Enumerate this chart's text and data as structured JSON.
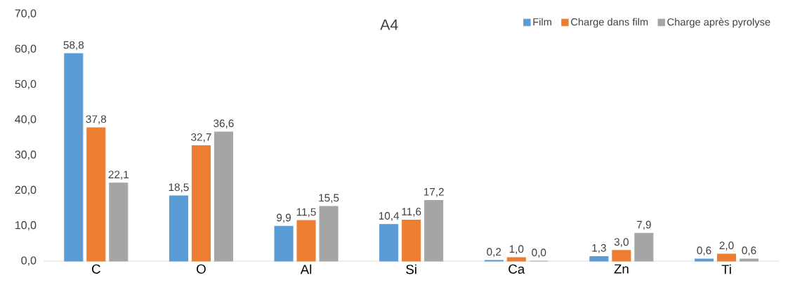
{
  "chart_data": {
    "type": "bar",
    "title": "A4",
    "categories": [
      "C",
      "O",
      "Al",
      "Si",
      "Ca",
      "Zn",
      "Ti"
    ],
    "series": [
      {
        "name": "Film",
        "color": "#5b9bd5",
        "values": [
          58.8,
          18.5,
          9.9,
          10.4,
          0.2,
          1.3,
          0.6
        ],
        "value_labels": [
          "58,8",
          "18,5",
          "9,9",
          "10,4",
          "0,2",
          "1,3",
          "0,6"
        ]
      },
      {
        "name": "Charge dans film",
        "color": "#ed7d31",
        "values": [
          37.8,
          32.7,
          11.5,
          11.6,
          1.0,
          3.0,
          2.0
        ],
        "value_labels": [
          "37,8",
          "32,7",
          "11,5",
          "11,6",
          "1,0",
          "3,0",
          "2,0"
        ]
      },
      {
        "name": "Charge après pyrolyse",
        "color": "#a5a5a5",
        "values": [
          22.1,
          36.6,
          15.5,
          17.2,
          0.0,
          7.9,
          0.6
        ],
        "value_labels": [
          "22,1",
          "36,6",
          "15,5",
          "17,2",
          "0,0",
          "7,9",
          "0,6"
        ]
      }
    ],
    "ylim": [
      0,
      70
    ],
    "yticks": [
      {
        "value": 0,
        "label": "0,0"
      },
      {
        "value": 10,
        "label": "10,0"
      },
      {
        "value": 20,
        "label": "20,0"
      },
      {
        "value": 30,
        "label": "30,0"
      },
      {
        "value": 40,
        "label": "40,0"
      },
      {
        "value": 50,
        "label": "50,0"
      },
      {
        "value": 60,
        "label": "60,0"
      },
      {
        "value": 70,
        "label": "70,0"
      }
    ],
    "legend": "top right"
  }
}
